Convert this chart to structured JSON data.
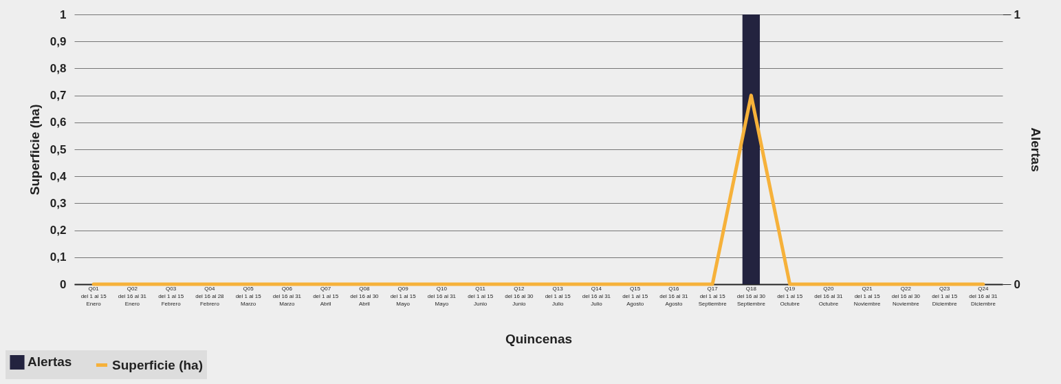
{
  "chart_data": {
    "type": "bar",
    "xlabel": "Quincenas",
    "ylabel": "Superficie (ha)",
    "y2label": "Alertas",
    "categories": [
      "Q01\ndel 1 al 15\nEnero",
      "Q02\ndel 16 al 31\nEnero",
      "Q03\ndel 1 al 15\nFebrero",
      "Q04\ndel 16 al 28\nFebrero",
      "Q05\ndel 1 al 15\nMarzo",
      "Q06\ndel 16 al 31\nMarzo",
      "Q07\ndel 1 al 15\nAbril",
      "Q08\ndel 16 al 30\nAbril",
      "Q09\ndel 1 al 15\nMayo",
      "Q10\ndel 16 al 31\nMayo",
      "Q11\ndel 1 al 15\nJunio",
      "Q12\ndel 16 al 30\nJunio",
      "Q13\ndel 1 al 15\nJulio",
      "Q14\ndel 16 al 31\nJulio",
      "Q15\ndel 1 al 15\nAgosto",
      "Q16\ndel 16 al 31\nAgosto",
      "Q17\ndel 1 al 15\nSeptiembre",
      "Q18\ndel 16 al 30\nSeptiembre",
      "Q19\ndel 1 al 15\nOctubre",
      "Q20\ndel 16 al 31\nOctubre",
      "Q21\ndel 1 al 15\nNoviembre",
      "Q22\ndel 16 al 30\nNoviembre",
      "Q23\ndel 1 al 15\nDiciembre",
      "Q24\ndel 16 al 31\nDiciembre"
    ],
    "series": [
      {
        "name": "Alertas",
        "axis": "y2",
        "color": "#23233f",
        "values": [
          0,
          0,
          0,
          0,
          0,
          0,
          0,
          0,
          0,
          0,
          0,
          0,
          0,
          0,
          0,
          0,
          0,
          1,
          0,
          0,
          0,
          0,
          0,
          0
        ]
      },
      {
        "name": "Superficie (ha)",
        "type": "line",
        "color": "#f6b13a",
        "values": [
          0,
          0,
          0,
          0,
          0,
          0,
          0,
          0,
          0,
          0,
          0,
          0,
          0,
          0,
          0,
          0,
          0,
          0.7,
          0,
          0,
          0,
          0,
          0,
          0
        ]
      }
    ],
    "ylim": [
      0,
      1
    ],
    "yticks": [
      0,
      {
        "value": 0.1,
        "label": "0,1"
      },
      {
        "value": 0.2,
        "label": "0,2"
      },
      {
        "value": 0.3,
        "label": "0,3"
      },
      {
        "value": 0.4,
        "label": "0,4"
      },
      {
        "value": 0.5,
        "label": "0,5"
      },
      {
        "value": 0.6,
        "label": "0,6"
      },
      {
        "value": 0.7,
        "label": "0,7"
      },
      {
        "value": 0.8,
        "label": "0,8"
      },
      {
        "value": 0.9,
        "label": "0,9"
      },
      1
    ],
    "y2lim": [
      0,
      1
    ],
    "y2ticks": [
      0,
      1
    ],
    "grid": "y",
    "legend": "bottom left",
    "marker": "none",
    "line_style": "solid"
  }
}
